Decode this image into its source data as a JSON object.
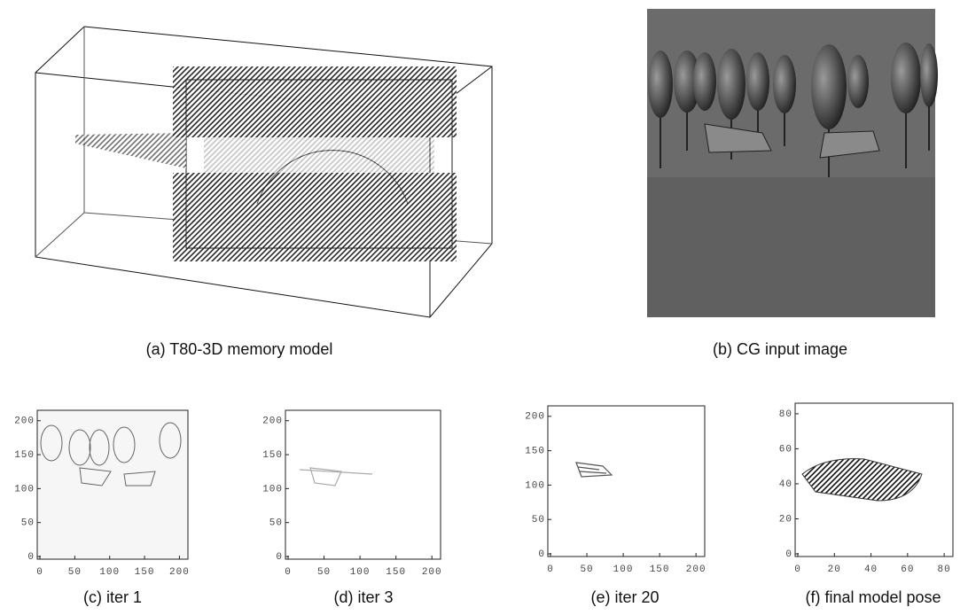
{
  "panels": [
    {
      "caption": "(a) T80-3D memory model"
    },
    {
      "caption": "(b) CG input image"
    },
    {
      "caption": "(c) iter 1",
      "xticks": [
        0,
        50,
        100,
        150,
        200
      ],
      "yticks": [
        0,
        50,
        100,
        150,
        200
      ]
    },
    {
      "caption": "(d) iter 3",
      "xticks": [
        0,
        50,
        100,
        150,
        200
      ],
      "yticks": [
        0,
        50,
        100,
        150,
        200
      ]
    },
    {
      "caption": "(e) iter 20",
      "xticks": [
        0,
        50,
        100,
        150,
        200
      ],
      "yticks": [
        0,
        50,
        100,
        150,
        200
      ]
    },
    {
      "caption": "(f) final model pose",
      "xticks": [
        0,
        20,
        40,
        60,
        80
      ],
      "yticks": [
        0,
        20,
        40,
        60,
        80
      ]
    }
  ]
}
